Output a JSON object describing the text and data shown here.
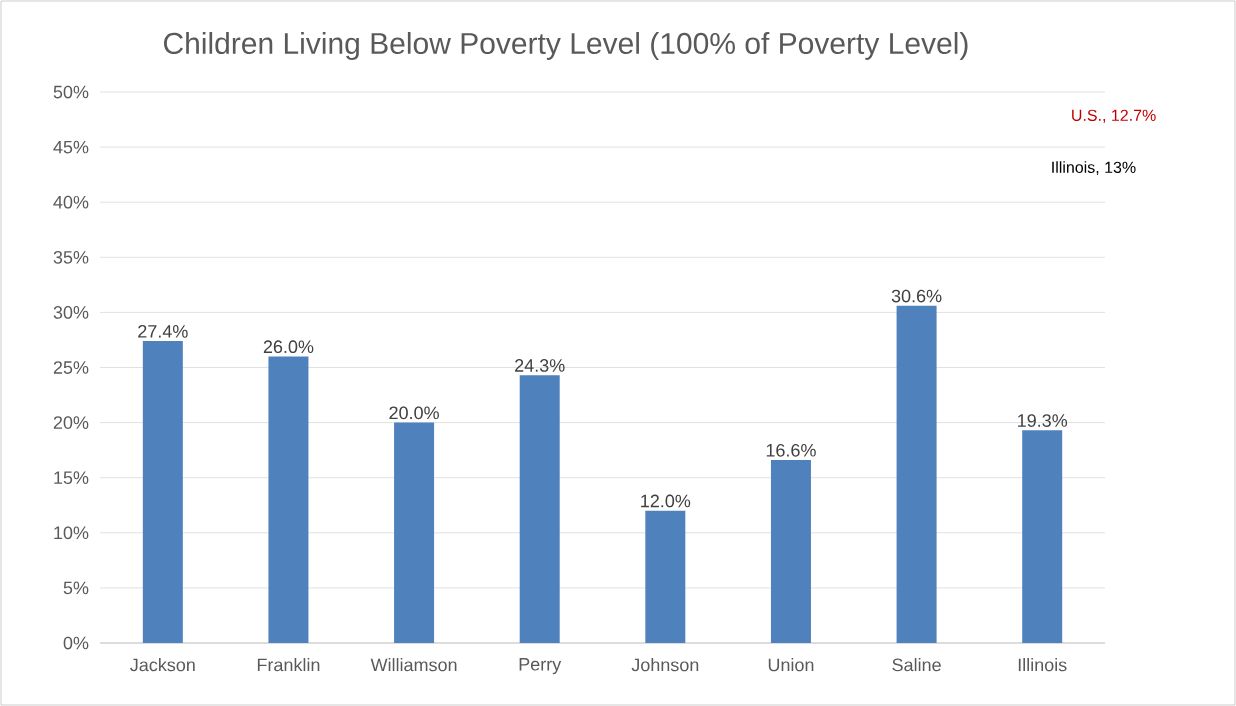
{
  "chart_data": {
    "type": "bar",
    "title": "Children Living Below Poverty Level (100% of Poverty Level)",
    "categories": [
      "Jackson",
      "Franklin",
      "Williamson",
      "Perry",
      "Johnson",
      "Union",
      "Saline",
      "Illinois"
    ],
    "values": [
      27.4,
      26.0,
      20.0,
      24.3,
      12.0,
      16.6,
      30.6,
      19.3
    ],
    "value_labels": [
      "27.4%",
      "26.0%",
      "20.0%",
      "24.3%",
      "12.0%",
      "16.6%",
      "30.6%",
      "19.3%"
    ],
    "color": "#4f81bd",
    "ylim": [
      0,
      50
    ],
    "yticks": [
      {
        "value": 0,
        "label": "0%"
      },
      {
        "value": 5,
        "label": "5%"
      },
      {
        "value": 10,
        "label": "10%"
      },
      {
        "value": 15,
        "label": "15%"
      },
      {
        "value": 20,
        "label": "20%"
      },
      {
        "value": 25,
        "label": "25%"
      },
      {
        "value": 30,
        "label": "30%"
      },
      {
        "value": 35,
        "label": "35%"
      },
      {
        "value": 40,
        "label": "40%"
      },
      {
        "value": 45,
        "label": "45%"
      },
      {
        "value": 50,
        "label": "50%"
      }
    ],
    "grid": "y",
    "annotations": [
      "U.S., 12.7%",
      "Illinois, 13%"
    ]
  }
}
